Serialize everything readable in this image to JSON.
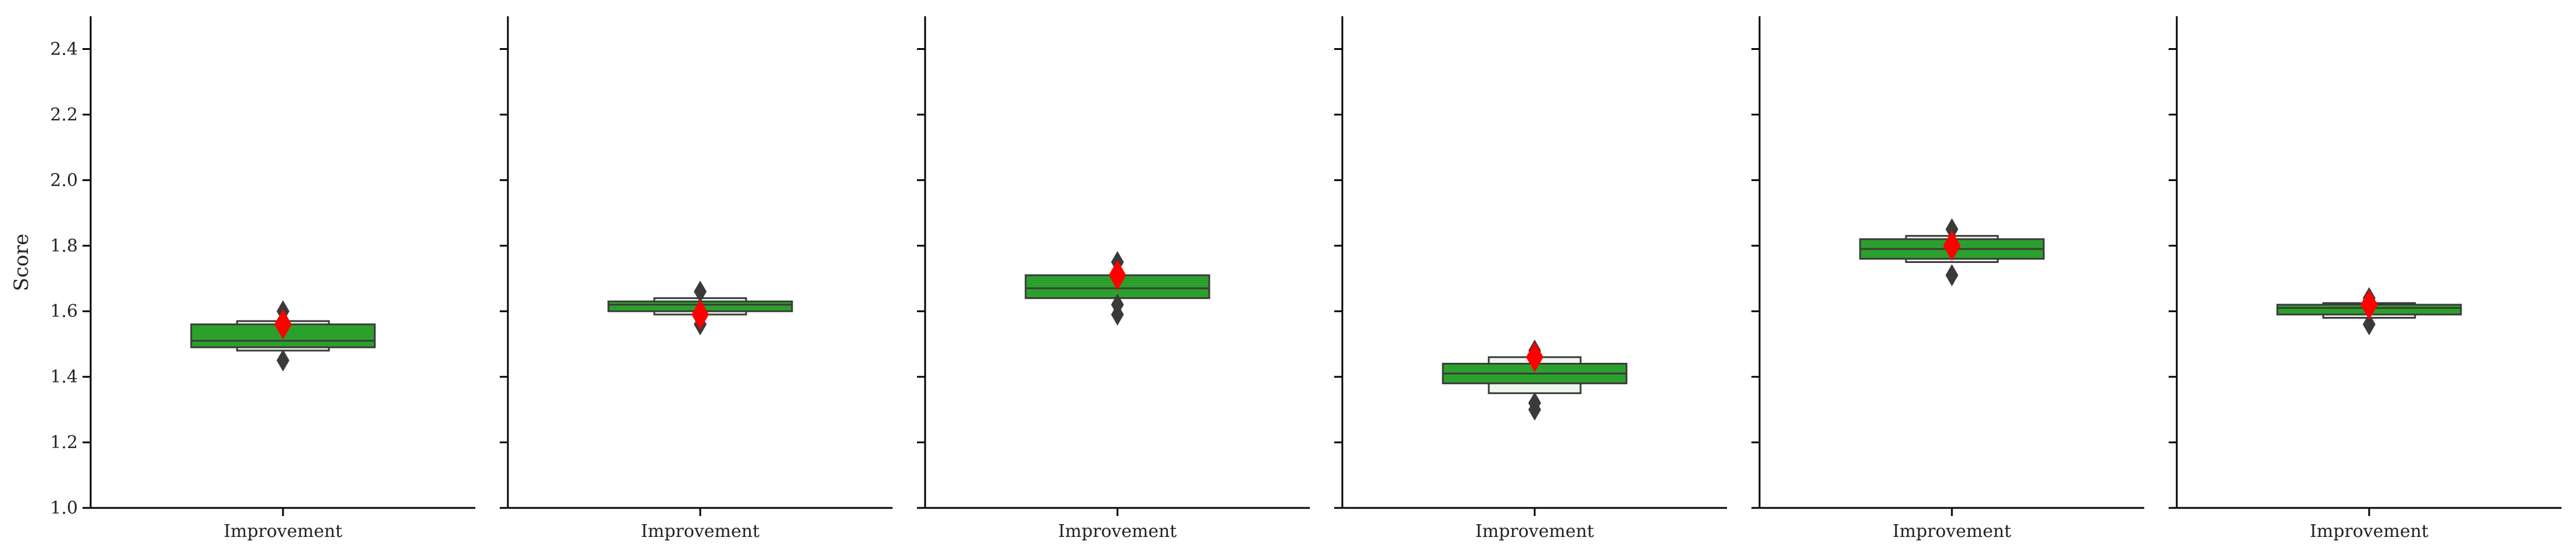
{
  "chart_data": {
    "type": "boxen",
    "ylabel": "Score",
    "ylim": [
      1.0,
      2.5
    ],
    "yticks": [
      1.0,
      1.2,
      1.4,
      1.6,
      1.8,
      2.0,
      2.2,
      2.4
    ],
    "grid": false,
    "colors": {
      "box": "#2ca02c",
      "edge": "#3a3a3a",
      "mean_marker": "#ff0000",
      "outlier": "#3a3a3a"
    },
    "panels": [
      {
        "category": "Improvement",
        "median": 1.51,
        "mean": 1.56,
        "levels": [
          {
            "q_low": 1.49,
            "q_high": 1.56
          },
          {
            "q_low": 1.48,
            "q_high": 1.57
          }
        ],
        "outliers": [
          1.45,
          1.6
        ]
      },
      {
        "category": "Improvement",
        "median": 1.62,
        "mean": 1.59,
        "levels": [
          {
            "q_low": 1.6,
            "q_high": 1.63
          },
          {
            "q_low": 1.59,
            "q_high": 1.64
          }
        ],
        "outliers": [
          1.56,
          1.66
        ]
      },
      {
        "category": "Improvement",
        "median": 1.67,
        "mean": 1.71,
        "levels": [
          {
            "q_low": 1.64,
            "q_high": 1.71
          }
        ],
        "outliers": [
          1.59,
          1.62,
          1.75
        ]
      },
      {
        "category": "Improvement",
        "median": 1.41,
        "mean": 1.46,
        "levels": [
          {
            "q_low": 1.38,
            "q_high": 1.44
          },
          {
            "q_low": 1.35,
            "q_high": 1.46
          }
        ],
        "outliers": [
          1.3,
          1.32,
          1.48
        ]
      },
      {
        "category": "Improvement",
        "median": 1.79,
        "mean": 1.8,
        "levels": [
          {
            "q_low": 1.76,
            "q_high": 1.82
          },
          {
            "q_low": 1.75,
            "q_high": 1.83
          }
        ],
        "outliers": [
          1.71,
          1.85
        ]
      },
      {
        "category": "Improvement",
        "median": 1.61,
        "mean": 1.62,
        "levels": [
          {
            "q_low": 1.59,
            "q_high": 1.62
          },
          {
            "q_low": 1.58,
            "q_high": 1.625
          }
        ],
        "outliers": [
          1.56,
          1.64
        ]
      }
    ]
  }
}
